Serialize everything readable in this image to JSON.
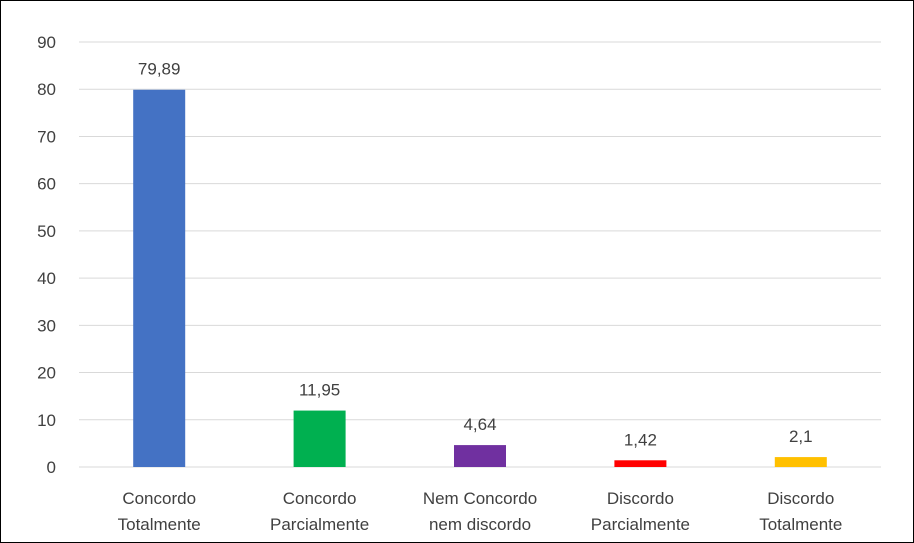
{
  "chart_data": {
    "type": "bar",
    "title": "",
    "xlabel": "",
    "ylabel": "",
    "ylim": [
      0,
      90
    ],
    "yticks": [
      "0",
      "10",
      "20",
      "30",
      "40",
      "50",
      "60",
      "70",
      "80",
      "90"
    ],
    "grid": true,
    "categories": [
      [
        "Concordo",
        "Totalmente"
      ],
      [
        "Concordo",
        "Parcialmente"
      ],
      [
        "Nem Concordo",
        "nem discordo"
      ],
      [
        "Discordo",
        "Parcialmente"
      ],
      [
        "Discordo",
        "Totalmente"
      ]
    ],
    "values": [
      79.89,
      11.95,
      4.64,
      1.42,
      2.1
    ],
    "value_labels": [
      "79,89",
      "11,95",
      "4,64",
      "1,42",
      "2,1"
    ],
    "colors": [
      "#4472C4",
      "#00B050",
      "#7030A0",
      "#FF0000",
      "#FFC000"
    ],
    "gridline_color": "#D9D9D9",
    "axis_color": "#D9D9D9"
  }
}
